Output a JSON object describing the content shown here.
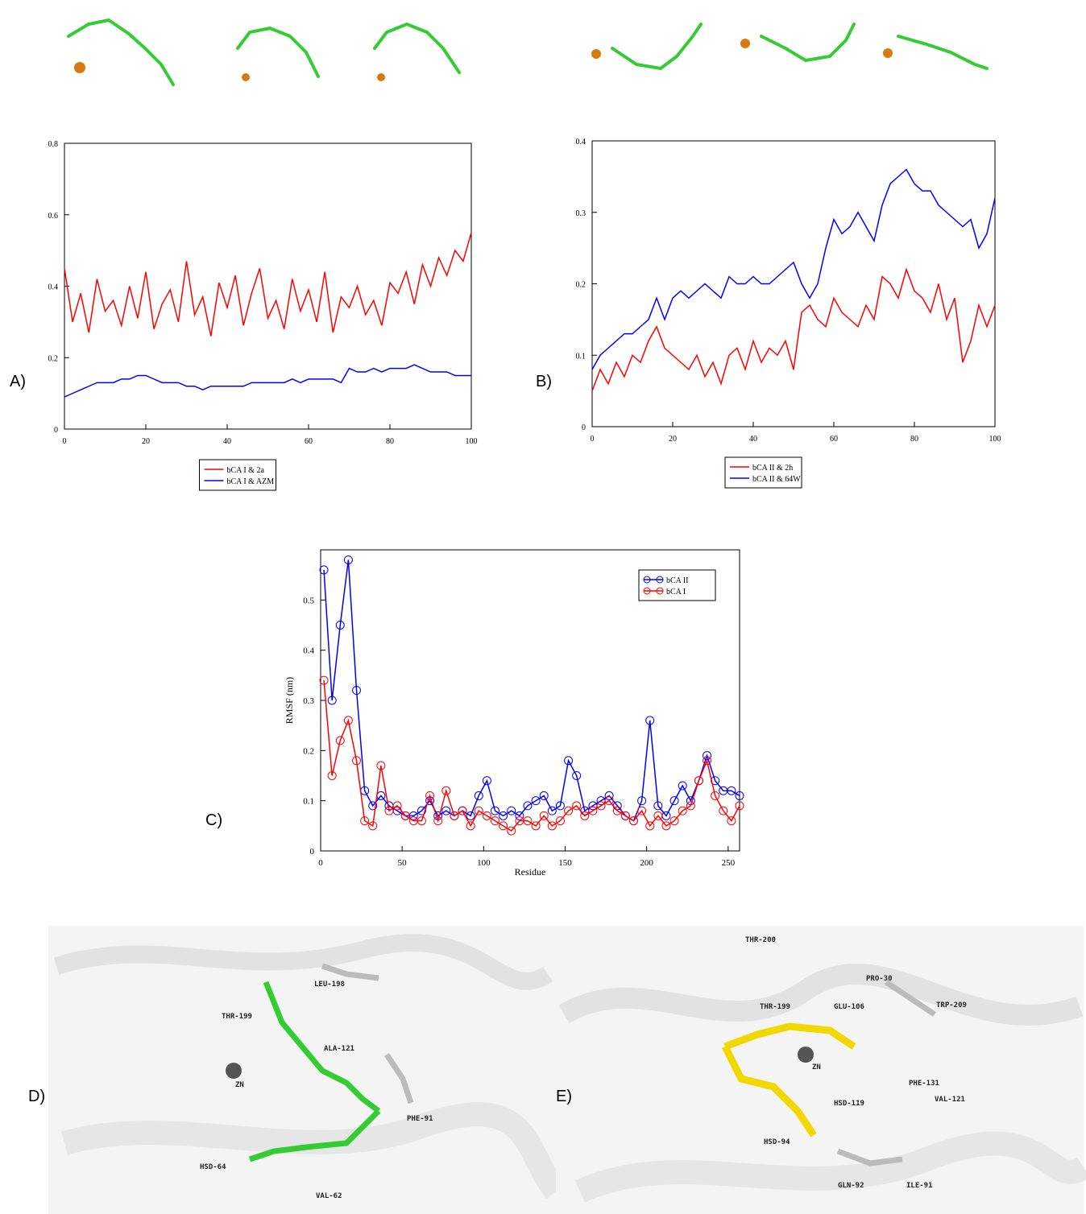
{
  "chart_data": [
    {
      "type": "line",
      "panel_label": "A)",
      "legend": "below",
      "x": [
        0,
        2,
        4,
        6,
        8,
        10,
        12,
        14,
        16,
        18,
        20,
        22,
        24,
        26,
        28,
        30,
        32,
        34,
        36,
        38,
        40,
        42,
        44,
        46,
        48,
        50,
        52,
        54,
        56,
        58,
        60,
        62,
        64,
        66,
        68,
        70,
        72,
        74,
        76,
        78,
        80,
        82,
        84,
        86,
        88,
        90,
        92,
        94,
        96,
        98,
        100
      ],
      "series": [
        {
          "name": "bCA I & 2a",
          "color": "#ff0000",
          "values": [
            0.45,
            0.3,
            0.38,
            0.27,
            0.42,
            0.33,
            0.36,
            0.29,
            0.4,
            0.31,
            0.44,
            0.28,
            0.35,
            0.39,
            0.3,
            0.47,
            0.32,
            0.37,
            0.26,
            0.41,
            0.34,
            0.43,
            0.29,
            0.38,
            0.45,
            0.31,
            0.36,
            0.28,
            0.42,
            0.33,
            0.39,
            0.3,
            0.44,
            0.27,
            0.37,
            0.34,
            0.4,
            0.32,
            0.36,
            0.29,
            0.41,
            0.38,
            0.44,
            0.35,
            0.46,
            0.4,
            0.48,
            0.43,
            0.5,
            0.47,
            0.55
          ]
        },
        {
          "name": "bCA I & AZM",
          "color": "#0000ff",
          "values": [
            0.09,
            0.1,
            0.11,
            0.12,
            0.13,
            0.13,
            0.13,
            0.14,
            0.14,
            0.15,
            0.15,
            0.14,
            0.13,
            0.13,
            0.13,
            0.12,
            0.12,
            0.11,
            0.12,
            0.12,
            0.12,
            0.12,
            0.12,
            0.13,
            0.13,
            0.13,
            0.13,
            0.13,
            0.14,
            0.13,
            0.14,
            0.14,
            0.14,
            0.14,
            0.13,
            0.17,
            0.16,
            0.16,
            0.17,
            0.16,
            0.17,
            0.17,
            0.17,
            0.18,
            0.17,
            0.16,
            0.16,
            0.16,
            0.15,
            0.15,
            0.15
          ]
        }
      ],
      "xlim": [
        0,
        100
      ],
      "xticks": [
        0,
        20,
        40,
        60,
        80,
        100
      ],
      "ylim": [
        0,
        0.8
      ],
      "yticks": [
        0,
        0.2,
        0.4,
        0.6,
        0.8
      ]
    },
    {
      "type": "line",
      "panel_label": "B)",
      "legend": "below",
      "x": [
        0,
        2,
        4,
        6,
        8,
        10,
        12,
        14,
        16,
        18,
        20,
        22,
        24,
        26,
        28,
        30,
        32,
        34,
        36,
        38,
        40,
        42,
        44,
        46,
        48,
        50,
        52,
        54,
        56,
        58,
        60,
        62,
        64,
        66,
        68,
        70,
        72,
        74,
        76,
        78,
        80,
        82,
        84,
        86,
        88,
        90,
        92,
        94,
        96,
        98,
        100
      ],
      "series": [
        {
          "name": "bCA II & 2h",
          "color": "#ff0000",
          "values": [
            0.05,
            0.08,
            0.06,
            0.09,
            0.07,
            0.1,
            0.09,
            0.12,
            0.14,
            0.11,
            0.1,
            0.09,
            0.08,
            0.1,
            0.07,
            0.09,
            0.06,
            0.1,
            0.11,
            0.08,
            0.12,
            0.09,
            0.11,
            0.1,
            0.12,
            0.08,
            0.16,
            0.17,
            0.15,
            0.14,
            0.18,
            0.16,
            0.15,
            0.14,
            0.17,
            0.15,
            0.21,
            0.2,
            0.18,
            0.22,
            0.19,
            0.18,
            0.16,
            0.2,
            0.15,
            0.18,
            0.09,
            0.12,
            0.17,
            0.14,
            0.17
          ]
        },
        {
          "name": "bCA II & 64W",
          "color": "#0000ff",
          "values": [
            0.08,
            0.1,
            0.11,
            0.12,
            0.13,
            0.13,
            0.14,
            0.15,
            0.18,
            0.15,
            0.18,
            0.19,
            0.18,
            0.19,
            0.2,
            0.19,
            0.18,
            0.21,
            0.2,
            0.2,
            0.21,
            0.2,
            0.2,
            0.21,
            0.22,
            0.23,
            0.2,
            0.18,
            0.2,
            0.25,
            0.29,
            0.27,
            0.28,
            0.3,
            0.28,
            0.26,
            0.31,
            0.34,
            0.35,
            0.36,
            0.34,
            0.33,
            0.33,
            0.31,
            0.3,
            0.29,
            0.28,
            0.29,
            0.25,
            0.27,
            0.32
          ]
        }
      ],
      "xlim": [
        0,
        100
      ],
      "xticks": [
        0,
        20,
        40,
        60,
        80,
        100
      ],
      "ylim": [
        0,
        0.4
      ],
      "yticks": [
        0,
        0.1,
        0.2,
        0.3,
        0.4
      ]
    },
    {
      "type": "line",
      "panel_label": "C)",
      "legend": "upper right",
      "marker": "circle",
      "x_label": "Residue",
      "y_label": "RMSF (nm)",
      "x": [
        2,
        7,
        12,
        17,
        22,
        27,
        32,
        37,
        42,
        47,
        52,
        57,
        62,
        67,
        72,
        77,
        82,
        87,
        92,
        97,
        102,
        107,
        112,
        117,
        122,
        127,
        132,
        137,
        142,
        147,
        152,
        157,
        162,
        167,
        172,
        177,
        182,
        187,
        192,
        197,
        202,
        207,
        212,
        217,
        222,
        227,
        232,
        237,
        242,
        247,
        252,
        257
      ],
      "series": [
        {
          "name": "bCA II",
          "color": "#0000ff",
          "values": [
            0.56,
            0.3,
            0.45,
            0.58,
            0.32,
            0.12,
            0.09,
            0.11,
            0.09,
            0.08,
            0.07,
            0.07,
            0.08,
            0.1,
            0.07,
            0.08,
            0.07,
            0.08,
            0.07,
            0.11,
            0.14,
            0.08,
            0.07,
            0.08,
            0.07,
            0.09,
            0.1,
            0.11,
            0.08,
            0.09,
            0.18,
            0.15,
            0.08,
            0.09,
            0.1,
            0.11,
            0.09,
            0.07,
            0.06,
            0.1,
            0.26,
            0.09,
            0.07,
            0.1,
            0.13,
            0.1,
            0.14,
            0.19,
            0.14,
            0.12,
            0.12,
            0.11
          ]
        },
        {
          "name": "bCA I",
          "color": "#ff0000",
          "values": [
            0.34,
            0.15,
            0.22,
            0.26,
            0.18,
            0.06,
            0.05,
            0.17,
            0.08,
            0.09,
            0.07,
            0.06,
            0.06,
            0.11,
            0.06,
            0.12,
            0.07,
            0.08,
            0.05,
            0.08,
            0.07,
            0.06,
            0.05,
            0.04,
            0.06,
            0.06,
            0.05,
            0.07,
            0.05,
            0.06,
            0.08,
            0.09,
            0.07,
            0.08,
            0.09,
            0.1,
            0.08,
            0.07,
            0.06,
            0.08,
            0.05,
            0.07,
            0.05,
            0.06,
            0.08,
            0.09,
            0.14,
            0.18,
            0.11,
            0.08,
            0.06,
            0.09
          ]
        }
      ],
      "xlim": [
        0,
        257
      ],
      "xticks": [
        0,
        50,
        100,
        150,
        200,
        250
      ],
      "ylim": [
        0,
        0.6
      ],
      "yticks": [
        0,
        0.1,
        0.2,
        0.3,
        0.4,
        0.5
      ]
    }
  ],
  "structures": [
    {
      "panel_label": "D)",
      "residues": [
        "THR-199",
        "LEU-198",
        "ALA-121",
        "ZN",
        "PHE-91",
        "HSD-64",
        "VAL-62"
      ]
    },
    {
      "panel_label": "E)",
      "residues": [
        "THR-200",
        "PRO-30",
        "THR-199",
        "GLU-106",
        "TRP-209",
        "ZN",
        "PHE-131",
        "VAL-121",
        "HSD-119",
        "HSD-94",
        "GLN-92",
        "ILE-91"
      ]
    }
  ]
}
